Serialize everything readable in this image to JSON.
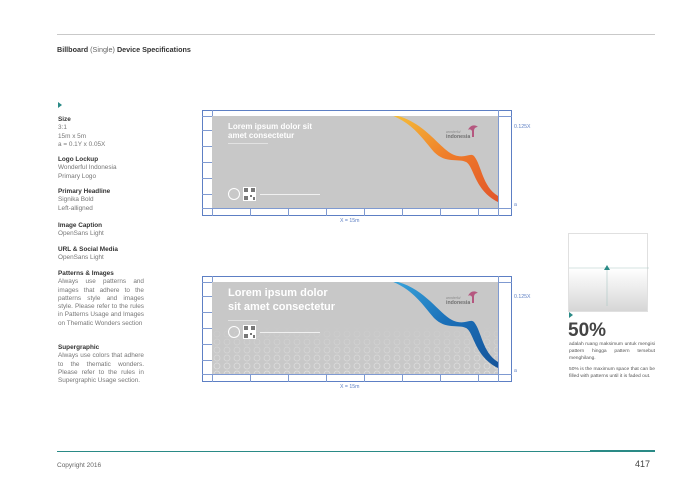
{
  "header": {
    "title_bold_a": "Billboard",
    "title_light": "(Single)",
    "title_bold_b": "Device Specifications"
  },
  "specs": [
    {
      "heading": "Size",
      "lines": [
        "3:1",
        "15m x 5m",
        "a = 0.1Y x 0.05X"
      ]
    },
    {
      "heading": "Logo Lockup",
      "lines": [
        "Wonderful Indonesia",
        "Primary Logo"
      ]
    },
    {
      "heading": "Primary Headline",
      "lines": [
        "Signika Bold",
        "Left-alligned"
      ]
    },
    {
      "heading": "Image Caption",
      "lines": [
        "OpenSans Light"
      ]
    },
    {
      "heading": "URL & Social Media",
      "lines": [
        "OpenSans Light"
      ]
    },
    {
      "heading": "Patterns & Images",
      "lines": [
        "Always use patterns and images that adhere to the patterns style and images style. Please refer to the rules in Patterns Usage and Images on Thematic Wonders section"
      ]
    },
    {
      "heading": "Supergraphic",
      "lines": [
        "Always use colors that adhere to the thematic wonders. Please refer to the rules in Supergraphic Usage section."
      ]
    }
  ],
  "billboards": [
    {
      "headline_1": "Lorem ipsum dolor sit",
      "headline_2": "amet consectetur",
      "logo_small": "wonderful",
      "logo_big": "indonesia",
      "dim_right": "0.125X",
      "dim_a": "a",
      "dim_width": "X = 15m",
      "swoosh_colors": [
        "#f5c23a",
        "#ef7d2a",
        "#e2552a"
      ]
    },
    {
      "headline_1": "Lorem ipsum dolor",
      "headline_2": "sit amet consectetur",
      "logo_small": "wonderful",
      "logo_big": "indonesia",
      "dim_right": "0.125X",
      "dim_a": "a",
      "dim_width": "X = 15m",
      "swoosh_colors": [
        "#3aa7dd",
        "#1a6fb8",
        "#15549a"
      ]
    }
  ],
  "side": {
    "percent": "50%",
    "desc_1": "adalah ruang maksimum untuk mengisi pattern hingga pattern tersebut menghilang.",
    "desc_2": "50% is the maximum space that can be filled with patterns until it is faded out."
  },
  "footer": {
    "copyright": "Copyright 2016",
    "page": "417"
  },
  "colors": {
    "accent": "#2a8a86",
    "guide": "#5d7fc4",
    "panel": "#c8c8c8"
  }
}
